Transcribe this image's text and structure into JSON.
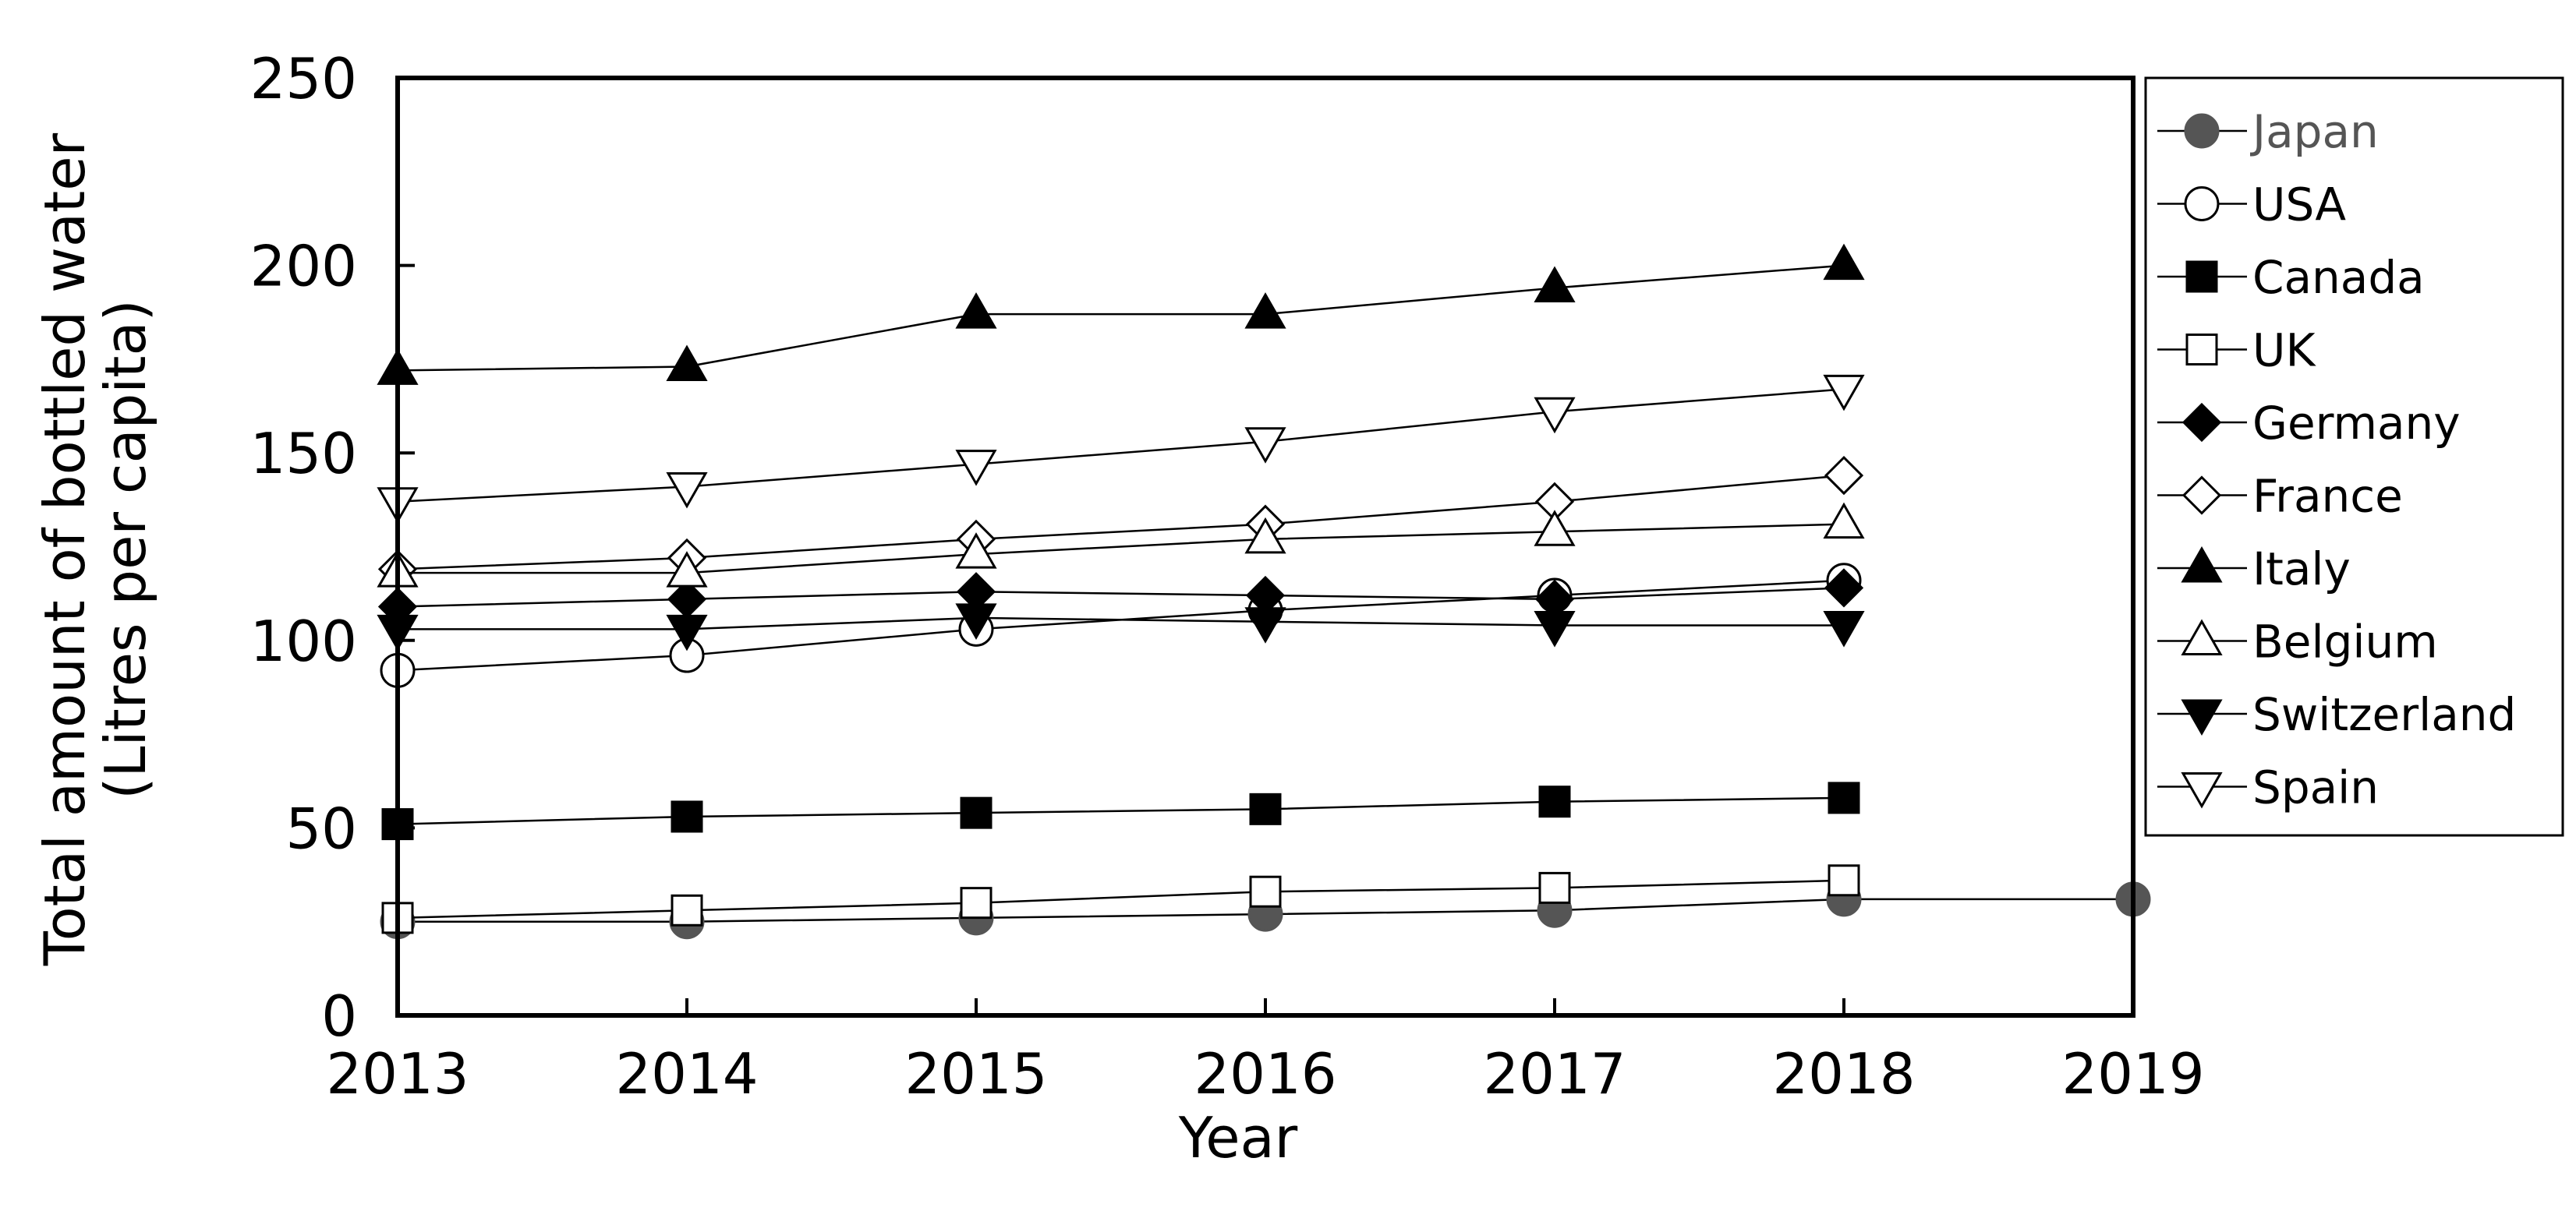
{
  "chart_data": {
    "type": "line",
    "title": "",
    "xlabel": "Year",
    "ylabel_line1": "Total amount of bottled water",
    "ylabel_line2": "(Litres per capita)",
    "xlim": [
      2013,
      2019
    ],
    "ylim": [
      0,
      250
    ],
    "x_ticks": [
      "2013",
      "2014",
      "2015",
      "2016",
      "2017",
      "2018",
      "2019"
    ],
    "y_ticks": [
      "0",
      "50",
      "100",
      "150",
      "200",
      "250"
    ],
    "grid": false,
    "legend_position": "right",
    "series": [
      {
        "name": "Japan",
        "marker": "circle",
        "fill": "#555555",
        "label_color": "#555555",
        "x": [
          2013,
          2014,
          2015,
          2016,
          2017,
          2018,
          2019
        ],
        "y": [
          25,
          25,
          26,
          27,
          28,
          31,
          31
        ]
      },
      {
        "name": "USA",
        "marker": "circle",
        "fill": "#ffffff",
        "label_color": "#000000",
        "x": [
          2013,
          2014,
          2015,
          2016,
          2017,
          2018
        ],
        "y": [
          92,
          96,
          103,
          108,
          112,
          116
        ]
      },
      {
        "name": "Canada",
        "marker": "square",
        "fill": "#000000",
        "label_color": "#000000",
        "x": [
          2013,
          2014,
          2015,
          2016,
          2017,
          2018
        ],
        "y": [
          51,
          53,
          54,
          55,
          57,
          58
        ]
      },
      {
        "name": "UK",
        "marker": "square",
        "fill": "#ffffff",
        "label_color": "#000000",
        "x": [
          2013,
          2014,
          2015,
          2016,
          2017,
          2018
        ],
        "y": [
          26,
          28,
          30,
          33,
          34,
          36
        ]
      },
      {
        "name": "Germany",
        "marker": "diamond",
        "fill": "#000000",
        "label_color": "#000000",
        "x": [
          2013,
          2014,
          2015,
          2016,
          2017,
          2018
        ],
        "y": [
          109,
          111,
          113,
          112,
          111,
          114
        ]
      },
      {
        "name": "France",
        "marker": "diamond",
        "fill": "#ffffff",
        "label_color": "#000000",
        "x": [
          2013,
          2014,
          2015,
          2016,
          2017,
          2018
        ],
        "y": [
          119,
          122,
          127,
          131,
          137,
          144
        ]
      },
      {
        "name": "Italy",
        "marker": "triangle-up",
        "fill": "#000000",
        "label_color": "#000000",
        "x": [
          2013,
          2014,
          2015,
          2016,
          2017,
          2018
        ],
        "y": [
          172,
          173,
          187,
          187,
          194,
          200
        ]
      },
      {
        "name": "Belgium",
        "marker": "triangle-up",
        "fill": "#ffffff",
        "label_color": "#000000",
        "x": [
          2013,
          2014,
          2015,
          2016,
          2017,
          2018
        ],
        "y": [
          118,
          118,
          123,
          127,
          129,
          131
        ]
      },
      {
        "name": "Switzerland",
        "marker": "triangle-down",
        "fill": "#000000",
        "label_color": "#000000",
        "x": [
          2013,
          2014,
          2015,
          2016,
          2017,
          2018
        ],
        "y": [
          103,
          103,
          106,
          105,
          104,
          104
        ]
      },
      {
        "name": "Spain",
        "marker": "triangle-down",
        "fill": "#ffffff",
        "label_color": "#000000",
        "x": [
          2013,
          2014,
          2015,
          2016,
          2017,
          2018
        ],
        "y": [
          137,
          141,
          147,
          153,
          161,
          167
        ]
      }
    ]
  }
}
